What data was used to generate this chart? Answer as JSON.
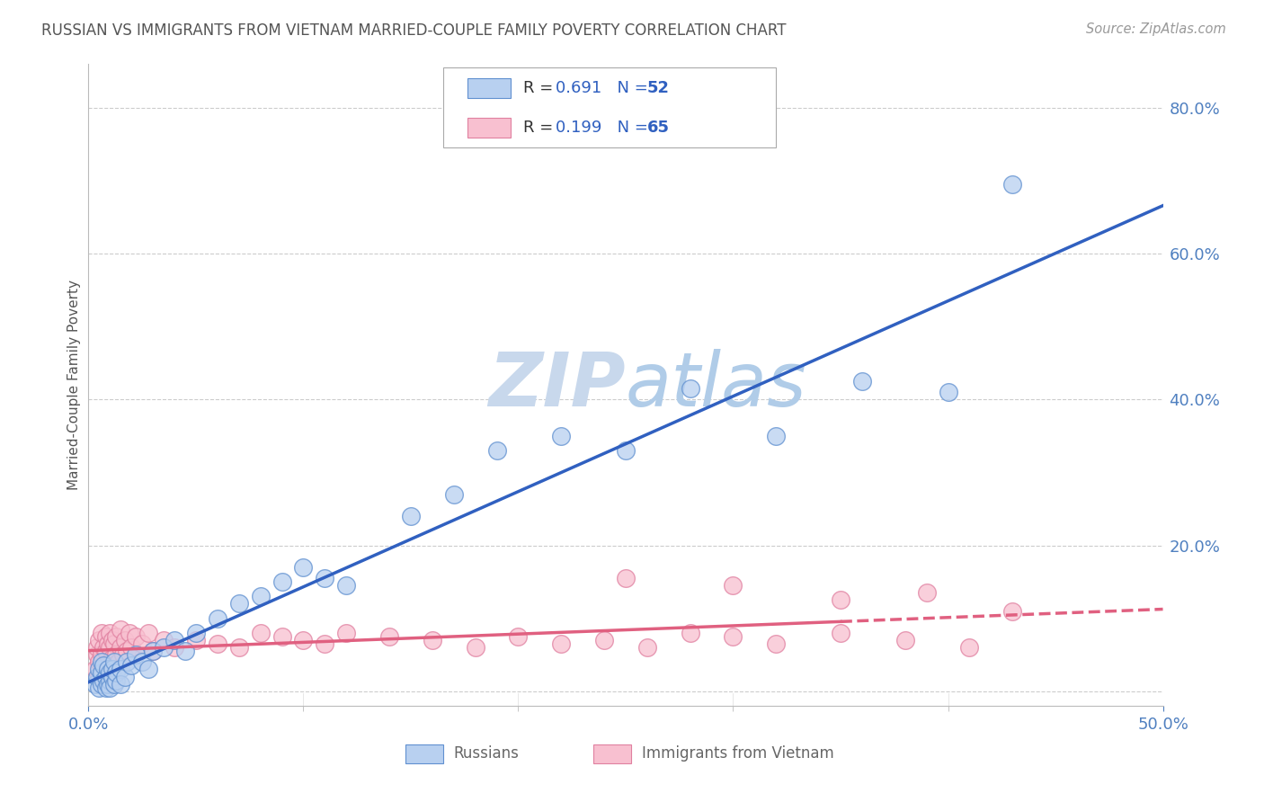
{
  "title": "RUSSIAN VS IMMIGRANTS FROM VIETNAM MARRIED-COUPLE FAMILY POVERTY CORRELATION CHART",
  "source": "Source: ZipAtlas.com",
  "ylabel": "Married-Couple Family Poverty",
  "xlim": [
    0.0,
    0.5
  ],
  "ylim": [
    -0.02,
    0.86
  ],
  "yticks": [
    0.0,
    0.2,
    0.4,
    0.6,
    0.8
  ],
  "ytick_labels": [
    "",
    "20.0%",
    "40.0%",
    "60.0%",
    "80.0%"
  ],
  "xticks": [
    0.0,
    0.5
  ],
  "xtick_labels": [
    "0.0%",
    "50.0%"
  ],
  "russian_R": 0.691,
  "russian_N": 52,
  "vietnam_R": 0.199,
  "vietnam_N": 65,
  "russian_color": "#b8d0f0",
  "russian_edge_color": "#6090d0",
  "russian_line_color": "#3060c0",
  "vietnam_color": "#f8c0d0",
  "vietnam_edge_color": "#e080a0",
  "vietnam_line_color": "#e06080",
  "watermark_color": "#dce8f5",
  "background_color": "#ffffff",
  "grid_color": "#cccccc",
  "title_color": "#555555",
  "source_color": "#999999",
  "tick_color": "#5080c0",
  "legend_label_color": "#333333",
  "legend_value_color": "#3060c0",
  "bottom_legend_color": "#666666",
  "russian_x": [
    0.003,
    0.004,
    0.005,
    0.005,
    0.006,
    0.006,
    0.006,
    0.007,
    0.007,
    0.008,
    0.008,
    0.009,
    0.009,
    0.01,
    0.01,
    0.01,
    0.011,
    0.011,
    0.012,
    0.012,
    0.013,
    0.013,
    0.015,
    0.015,
    0.017,
    0.018,
    0.02,
    0.022,
    0.025,
    0.028,
    0.03,
    0.035,
    0.04,
    0.045,
    0.05,
    0.06,
    0.07,
    0.08,
    0.09,
    0.1,
    0.11,
    0.12,
    0.15,
    0.17,
    0.19,
    0.22,
    0.25,
    0.28,
    0.32,
    0.36,
    0.4,
    0.43
  ],
  "russian_y": [
    0.01,
    0.02,
    0.005,
    0.03,
    0.01,
    0.025,
    0.04,
    0.015,
    0.035,
    0.005,
    0.02,
    0.01,
    0.03,
    0.015,
    0.025,
    0.005,
    0.02,
    0.03,
    0.01,
    0.04,
    0.015,
    0.025,
    0.03,
    0.01,
    0.02,
    0.04,
    0.035,
    0.05,
    0.04,
    0.03,
    0.055,
    0.06,
    0.07,
    0.055,
    0.08,
    0.1,
    0.12,
    0.13,
    0.15,
    0.17,
    0.155,
    0.145,
    0.24,
    0.27,
    0.33,
    0.35,
    0.33,
    0.415,
    0.35,
    0.425,
    0.41,
    0.695
  ],
  "vietnam_x": [
    0.003,
    0.004,
    0.004,
    0.005,
    0.005,
    0.005,
    0.006,
    0.006,
    0.006,
    0.007,
    0.007,
    0.008,
    0.008,
    0.008,
    0.009,
    0.009,
    0.01,
    0.01,
    0.01,
    0.011,
    0.011,
    0.012,
    0.012,
    0.013,
    0.013,
    0.014,
    0.015,
    0.015,
    0.016,
    0.017,
    0.018,
    0.019,
    0.02,
    0.022,
    0.025,
    0.028,
    0.03,
    0.035,
    0.04,
    0.05,
    0.06,
    0.07,
    0.08,
    0.09,
    0.1,
    0.11,
    0.12,
    0.14,
    0.16,
    0.18,
    0.2,
    0.22,
    0.24,
    0.26,
    0.28,
    0.3,
    0.32,
    0.35,
    0.38,
    0.41,
    0.25,
    0.3,
    0.35,
    0.39,
    0.43
  ],
  "vietnam_y": [
    0.03,
    0.05,
    0.06,
    0.02,
    0.04,
    0.07,
    0.03,
    0.05,
    0.08,
    0.025,
    0.06,
    0.035,
    0.055,
    0.075,
    0.03,
    0.065,
    0.04,
    0.06,
    0.08,
    0.045,
    0.07,
    0.035,
    0.065,
    0.05,
    0.075,
    0.04,
    0.06,
    0.085,
    0.05,
    0.07,
    0.055,
    0.08,
    0.06,
    0.075,
    0.065,
    0.08,
    0.055,
    0.07,
    0.06,
    0.07,
    0.065,
    0.06,
    0.08,
    0.075,
    0.07,
    0.065,
    0.08,
    0.075,
    0.07,
    0.06,
    0.075,
    0.065,
    0.07,
    0.06,
    0.08,
    0.075,
    0.065,
    0.08,
    0.07,
    0.06,
    0.155,
    0.145,
    0.125,
    0.135,
    0.11
  ]
}
